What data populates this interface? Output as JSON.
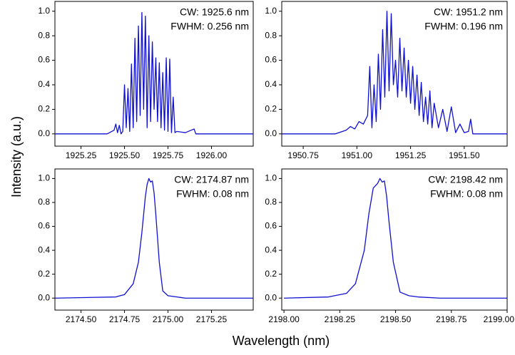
{
  "chart_data": [
    {
      "type": "line",
      "color": "#1010d0",
      "annotations": [
        "CW: 1925.6 nm",
        "FWHM: 0.256 nm"
      ],
      "x": [
        1925.1,
        1925.4,
        1925.44,
        1925.45,
        1925.46,
        1925.47,
        1925.48,
        1925.49,
        1925.5,
        1925.51,
        1925.52,
        1925.53,
        1925.54,
        1925.55,
        1925.56,
        1925.57,
        1925.58,
        1925.59,
        1925.6,
        1925.61,
        1925.62,
        1925.63,
        1925.64,
        1925.65,
        1925.66,
        1925.67,
        1925.68,
        1925.69,
        1925.7,
        1925.71,
        1925.72,
        1925.73,
        1925.74,
        1925.75,
        1925.76,
        1925.77,
        1925.78,
        1925.79,
        1925.8,
        1925.85,
        1925.9,
        1925.91,
        1925.92,
        1926.24
      ],
      "values": [
        0,
        0,
        0.03,
        0.08,
        0.01,
        0.07,
        0,
        0.02,
        0.4,
        0.05,
        0.37,
        0.02,
        0.57,
        0.05,
        0.78,
        0.1,
        0.88,
        0.15,
        0.99,
        0.2,
        0.96,
        0.05,
        0.8,
        0.1,
        0.75,
        0.2,
        0.62,
        0.1,
        0.58,
        0.05,
        0.5,
        0.03,
        0.62,
        0.02,
        0.61,
        0.01,
        0.3,
        0.01,
        0.02,
        0.01,
        0.04,
        0,
        0,
        0
      ],
      "xlim": [
        1925.1,
        1926.24
      ],
      "ylim": [
        -0.1,
        1.08
      ],
      "xticks": [
        1925.25,
        {
          "value": 1925.5,
          "label": "1925.50"
        },
        1925.75,
        {
          "value": 1926,
          "label": "1926.00"
        }
      ],
      "yticks": [
        {
          "value": 0,
          "label": "0.0"
        },
        0.2,
        0.4,
        0.6,
        0.8,
        {
          "value": 1,
          "label": "1.0"
        }
      ]
    },
    {
      "type": "line",
      "color": "#1010d0",
      "annotations": [
        "CW: 1951.2 nm",
        "FWHM: 0.196 nm"
      ],
      "x": [
        1950.65,
        1950.9,
        1950.95,
        1950.97,
        1950.99,
        1951.01,
        1951.03,
        1951.05,
        1951.06,
        1951.07,
        1951.08,
        1951.09,
        1951.1,
        1951.11,
        1951.12,
        1951.13,
        1951.14,
        1951.15,
        1951.16,
        1951.17,
        1951.18,
        1951.19,
        1951.2,
        1951.21,
        1951.22,
        1951.23,
        1951.24,
        1951.25,
        1951.26,
        1951.27,
        1951.28,
        1951.29,
        1951.3,
        1951.31,
        1951.32,
        1951.33,
        1951.34,
        1951.35,
        1951.36,
        1951.38,
        1951.4,
        1951.42,
        1951.44,
        1951.46,
        1951.48,
        1951.5,
        1951.52,
        1951.53,
        1951.54,
        1951.7
      ],
      "values": [
        0,
        0,
        0.03,
        0.06,
        0.04,
        0.1,
        0.08,
        0.15,
        0.55,
        0.05,
        0.4,
        0.1,
        0.65,
        0.2,
        0.85,
        0.3,
        1.0,
        0.35,
        0.98,
        0.4,
        0.6,
        0.3,
        0.78,
        0.35,
        0.7,
        0.3,
        0.6,
        0.25,
        0.55,
        0.2,
        0.48,
        0.15,
        0.42,
        0.1,
        0.3,
        0.08,
        0.35,
        0.05,
        0.25,
        0.05,
        0.2,
        0.02,
        0.22,
        0.01,
        0.08,
        0.01,
        0.02,
        0.12,
        0,
        0
      ],
      "xlim": [
        1950.65,
        1951.7
      ],
      "ylim": [
        -0.1,
        1.08
      ],
      "xticks": [
        1950.75,
        {
          "value": 1951,
          "label": "1951.00"
        },
        1951.25,
        {
          "value": 1951.5,
          "label": "1951.50"
        }
      ],
      "yticks": [
        {
          "value": 0,
          "label": "0.0"
        },
        0.2,
        0.4,
        0.6,
        0.8,
        {
          "value": 1,
          "label": "1.0"
        }
      ]
    },
    {
      "type": "line",
      "color": "#1010d0",
      "annotations": [
        "CW: 2174.87 nm",
        "FWHM: 0.08 nm"
      ],
      "x": [
        2174.35,
        2174.7,
        2174.75,
        2174.8,
        2174.83,
        2174.85,
        2174.87,
        2174.88,
        2174.89,
        2174.9,
        2174.91,
        2174.92,
        2174.93,
        2174.95,
        2174.97,
        2175.0,
        2175.05,
        2175.1,
        2175.49
      ],
      "values": [
        0,
        0.01,
        0.03,
        0.12,
        0.3,
        0.55,
        0.85,
        0.95,
        1.0,
        0.97,
        0.98,
        0.88,
        0.7,
        0.3,
        0.06,
        0.02,
        0.01,
        0,
        0
      ],
      "xlim": [
        2174.35,
        2175.49
      ],
      "ylim": [
        -0.1,
        1.08
      ],
      "xticks": [
        {
          "value": 2174.5,
          "label": "2174.50"
        },
        2174.75,
        {
          "value": 2175,
          "label": "2175.00"
        },
        2175.25
      ],
      "yticks": [
        {
          "value": 0,
          "label": "0.0"
        },
        0.2,
        0.4,
        0.6,
        0.8,
        {
          "value": 1,
          "label": "1.0"
        }
      ]
    },
    {
      "type": "line",
      "color": "#1010d0",
      "annotations": [
        "CW: 2198.42 nm",
        "FWHM: 0.08 nm"
      ],
      "x": [
        2198.0,
        2198.2,
        2198.28,
        2198.32,
        2198.36,
        2198.38,
        2198.4,
        2198.42,
        2198.43,
        2198.44,
        2198.45,
        2198.46,
        2198.47,
        2198.49,
        2198.52,
        2198.56,
        2198.6,
        2198.7,
        2199.0
      ],
      "values": [
        0,
        0.01,
        0.04,
        0.12,
        0.4,
        0.7,
        0.92,
        0.96,
        1.0,
        0.97,
        0.98,
        0.85,
        0.65,
        0.3,
        0.05,
        0.02,
        0.01,
        0,
        0
      ],
      "xlim": [
        2197.99,
        2199.0
      ],
      "ylim": [
        -0.1,
        1.08
      ],
      "xticks": [
        {
          "value": 2198,
          "label": "2198.00"
        },
        2198.25,
        {
          "value": 2198.5,
          "label": "2198.50"
        },
        2198.75,
        {
          "value": 2199,
          "label": "2199.00"
        }
      ],
      "yticks": [
        {
          "value": 0,
          "label": "0.0"
        },
        0.2,
        0.4,
        0.6,
        0.8,
        {
          "value": 1,
          "label": "1.0"
        }
      ]
    }
  ],
  "y_label": "Intensity (a.u.)",
  "x_label": "Wavelength (nm)"
}
